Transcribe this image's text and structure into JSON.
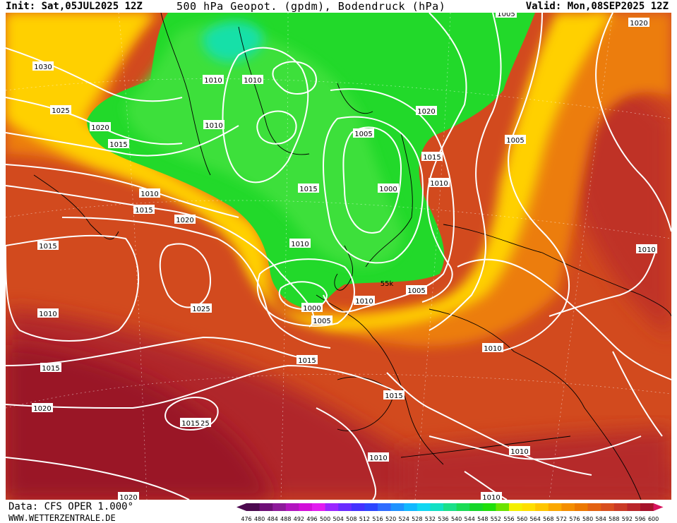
{
  "header": {
    "init": "Init: Sat,05JUL2025 12Z",
    "title": "500 hPa Geopot. (gpdm), Bodendruck (hPa)",
    "valid": "Valid: Mon,08SEP2025 12Z"
  },
  "footer": {
    "source": "Data: CFS OPER 1.000°",
    "website": "WWW.WETTERZENTRALE.DE"
  },
  "scale": {
    "values": [
      "476",
      "480",
      "484",
      "488",
      "492",
      "496",
      "500",
      "504",
      "508",
      "512",
      "516",
      "520",
      "524",
      "528",
      "532",
      "536",
      "540",
      "544",
      "548",
      "552",
      "556",
      "560",
      "564",
      "568",
      "572",
      "576",
      "580",
      "584",
      "588",
      "592",
      "596",
      "600"
    ],
    "colors": [
      "#4b0a4f",
      "#6e0f77",
      "#8d1a9a",
      "#b215bf",
      "#d20fd9",
      "#e21cf0",
      "#9a26ff",
      "#6a2cff",
      "#4432ff",
      "#2d46ff",
      "#2f6cff",
      "#1f93ff",
      "#12b8ff",
      "#10d7f2",
      "#12e0c4",
      "#1ae08a",
      "#19dc55",
      "#15d62a",
      "#1fdf0c",
      "#6be300",
      "#f4f000",
      "#ffdf00",
      "#ffc600",
      "#fba800",
      "#f48e00",
      "#ec7800",
      "#e36212",
      "#d84f1f",
      "#ca3b26",
      "#b9262a",
      "#a5142c",
      "#d7145e"
    ]
  },
  "isobars": [
    "1030",
    "1025",
    "1020",
    "1015",
    "1010",
    "1015",
    "1020",
    "1015",
    "1010",
    "1010",
    "1025",
    "1015",
    "1020",
    "1025",
    "1010",
    "1010",
    "1005",
    "1000",
    "1005",
    "1010",
    "1015",
    "1015",
    "1015",
    "1010",
    "1005",
    "1000",
    "1015",
    "1010",
    "1005",
    "1005",
    "1020",
    "1020",
    "1010",
    "1010",
    "1010",
    "1015",
    "1010",
    "1010",
    "1010",
    "1020"
  ],
  "map_note": "55k"
}
